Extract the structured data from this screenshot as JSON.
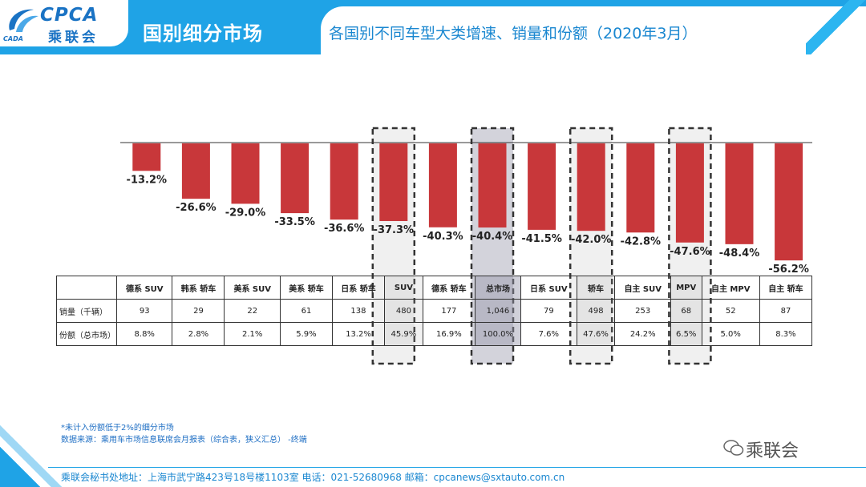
{
  "header": {
    "logo_text": "CPCA",
    "logo_cn": "乘联会",
    "logo_small": "CADA",
    "title": "国别细分市场",
    "subtitle": "各国别不同车型大类增速、销量和份额（2020年3月）"
  },
  "chart_data": {
    "type": "bar",
    "title": "各国别不同车型大类增速、销量和份额（2020年3月）",
    "categories": [
      "德系 SUV",
      "韩系 轿车",
      "美系 SUV",
      "美系 轿车",
      "日系 轿车",
      "SUV",
      "德系 轿车",
      "总市场",
      "日系 SUV",
      "轿车",
      "自主 SUV",
      "MPV",
      "自主 MPV",
      "自主 轿车"
    ],
    "values": [
      -13.2,
      -26.6,
      -29.0,
      -33.5,
      -36.6,
      -37.3,
      -40.3,
      -40.4,
      -41.5,
      -42.0,
      -42.8,
      -47.6,
      -48.4,
      -56.2
    ],
    "value_labels": [
      "-13.2%",
      "-26.6%",
      "-29.0%",
      "-33.5%",
      "-36.6%",
      "-37.3%",
      "-40.3%",
      "-40.4%",
      "-41.5%",
      "-42.0%",
      "-42.8%",
      "-47.6%",
      "-48.4%",
      "-56.2%"
    ],
    "ylim": [
      -60,
      0
    ],
    "highlighted": [
      "SUV",
      "总市场",
      "轿车",
      "MPV"
    ],
    "bar_color": "#c8373a"
  },
  "table": {
    "rows": [
      {
        "label": "销量（千辆）",
        "values": [
          "93",
          "29",
          "22",
          "61",
          "138",
          "480",
          "177",
          "1,046",
          "79",
          "498",
          "253",
          "68",
          "52",
          "87"
        ]
      },
      {
        "label": "份额（总市场）",
        "values": [
          "8.8%",
          "2.8%",
          "2.1%",
          "5.9%",
          "13.2%",
          "45.9%",
          "16.9%",
          "100.0%",
          "7.6%",
          "47.6%",
          "24.2%",
          "6.5%",
          "5.0%",
          "8.3%"
        ]
      }
    ]
  },
  "notes": {
    "line1": "*未计入份额低于2%的细分市场",
    "line2": "数据来源：乘用车市场信息联席会月报表（综合表，狭义汇总）  -终端"
  },
  "footer": "乘联会秘书处地址：上海市武宁路423号18号楼1103室  电话：021-52680968  邮箱：cpcanews@sxtauto.com.cn",
  "watermark": "乘联会",
  "colors": {
    "brand": "#1fa3e6",
    "bar": "#c8373a"
  }
}
